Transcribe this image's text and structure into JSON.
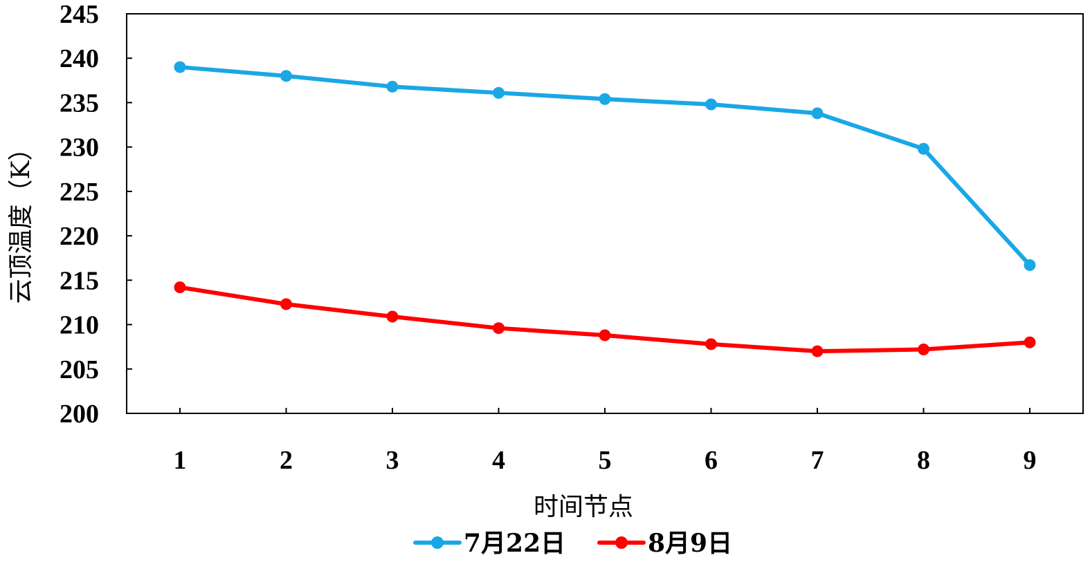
{
  "chart_data": {
    "type": "line",
    "title": "",
    "xlabel": "时间节点",
    "ylabel": "云顶温度（K）",
    "x": [
      1,
      2,
      3,
      4,
      5,
      6,
      7,
      8,
      9
    ],
    "x_tick_labels": [
      "1",
      "2",
      "3",
      "4",
      "5",
      "6",
      "7",
      "8",
      "9"
    ],
    "ylim": [
      200,
      245
    ],
    "y_ticks": [
      200,
      205,
      210,
      215,
      220,
      225,
      230,
      235,
      240,
      245
    ],
    "y_tick_labels": [
      "200",
      "205",
      "210",
      "215",
      "220",
      "225",
      "230",
      "235",
      "240",
      "245"
    ],
    "grid": false,
    "legend_position": "bottom",
    "series": [
      {
        "name": "7月22日",
        "color": "#1aa7e6",
        "marker": "circle",
        "values": [
          239.0,
          238.0,
          236.8,
          236.1,
          235.4,
          234.8,
          233.8,
          229.8,
          216.7
        ]
      },
      {
        "name": "8月9日",
        "color": "#ff0000",
        "marker": "circle",
        "values": [
          214.2,
          212.3,
          210.9,
          209.6,
          208.8,
          207.8,
          207.0,
          207.2,
          208.0
        ]
      }
    ]
  }
}
